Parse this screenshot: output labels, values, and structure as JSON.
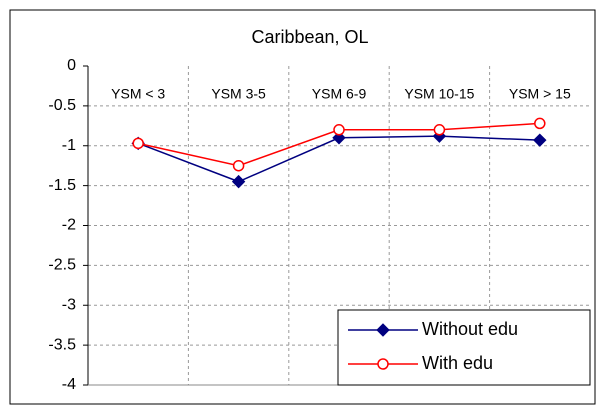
{
  "chart_data": {
    "type": "line",
    "title": "Caribbean, OL",
    "categories": [
      "YSM < 3",
      "YSM 3-5",
      "YSM 6-9",
      "YSM 10-15",
      "YSM > 15"
    ],
    "series": [
      {
        "name": "Without edu",
        "color": "#000080",
        "marker": "diamond",
        "values": [
          -0.97,
          -1.45,
          -0.9,
          -0.88,
          -0.93
        ]
      },
      {
        "name": "With edu",
        "color": "#ff0000",
        "marker": "circle",
        "values": [
          -0.97,
          -1.25,
          -0.8,
          -0.8,
          -0.72
        ]
      }
    ],
    "ylim": [
      -4,
      0
    ],
    "yticks": [
      0,
      -0.5,
      -1,
      -1.5,
      -2,
      -2.5,
      -3,
      -3.5,
      -4
    ],
    "grid": true,
    "legend": "lower right"
  }
}
